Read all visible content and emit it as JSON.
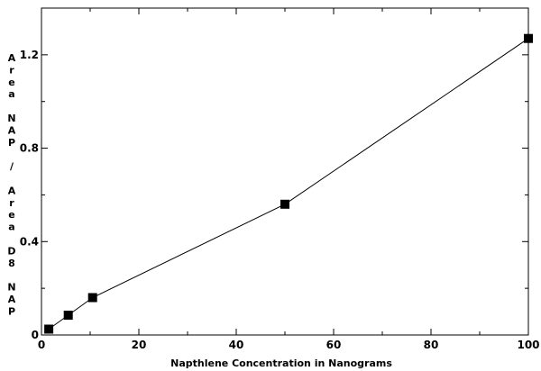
{
  "chart_data": {
    "type": "line",
    "title": "",
    "xlabel": "Napthlene Concentration in Nanograms",
    "ylabel": "Area NAP / Area D8 NAP",
    "ylabel_lines": [
      "A",
      "r",
      "e",
      "a",
      "",
      "N",
      "A",
      "P",
      "",
      "/",
      "",
      "A",
      "r",
      "e",
      "a",
      "",
      "D",
      "8",
      "",
      "N",
      "A",
      "P"
    ],
    "xlim": [
      0,
      100
    ],
    "ylim": [
      0,
      1.4
    ],
    "x_ticks": [
      0,
      20,
      40,
      60,
      80,
      100
    ],
    "x_tick_labels": [
      "0",
      "20",
      "40",
      "60",
      "80",
      "100"
    ],
    "y_ticks": [
      0,
      0.4,
      0.8,
      1.2
    ],
    "y_tick_labels": [
      "0",
      "0.4",
      "0.8",
      "1.2"
    ],
    "grid": false,
    "series": [
      {
        "marker": "square",
        "color": "#000000",
        "x": [
          1.5,
          5.5,
          10.5,
          50,
          100
        ],
        "y": [
          0.025,
          0.085,
          0.16,
          0.56,
          1.27
        ]
      }
    ]
  }
}
